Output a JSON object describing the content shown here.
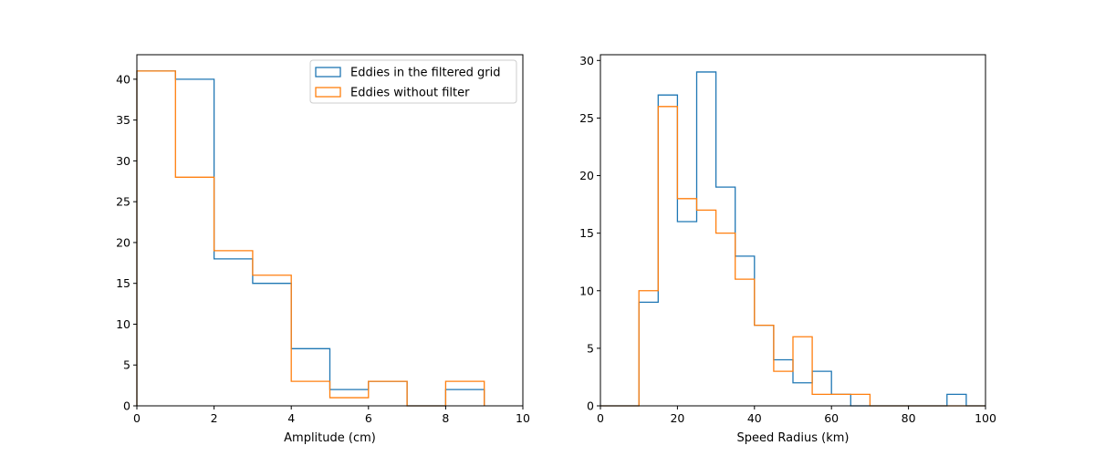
{
  "chart_data": [
    {
      "type": "histogram-step",
      "xlabel": "Amplitude (cm)",
      "ylabel": "",
      "xlim": [
        0,
        10
      ],
      "ylim": [
        0,
        43
      ],
      "xticks": [
        0,
        2,
        4,
        6,
        8,
        10
      ],
      "yticks": [
        0,
        5,
        10,
        15,
        20,
        25,
        30,
        35,
        40
      ],
      "bin_edges": [
        0,
        1,
        2,
        3,
        4,
        5,
        6,
        7,
        8,
        9
      ],
      "legend": {
        "position": "top-right"
      },
      "series": [
        {
          "name": "Eddies in the filtered grid",
          "color": "#1f77b4",
          "values": [
            41,
            40,
            18,
            15,
            7,
            2,
            3,
            0,
            2
          ]
        },
        {
          "name": "Eddies without filter",
          "color": "#ff7f0e",
          "values": [
            41,
            28,
            19,
            16,
            3,
            1,
            3,
            0,
            3
          ]
        }
      ]
    },
    {
      "type": "histogram-step",
      "xlabel": "Speed Radius (km)",
      "ylabel": "",
      "xlim": [
        0,
        100
      ],
      "ylim": [
        0,
        30.5
      ],
      "xticks": [
        0,
        20,
        40,
        60,
        80,
        100
      ],
      "yticks": [
        0,
        5,
        10,
        15,
        20,
        25,
        30
      ],
      "bin_edges": [
        0,
        5,
        10,
        15,
        20,
        25,
        30,
        35,
        40,
        45,
        50,
        55,
        60,
        65,
        70,
        75,
        80,
        85,
        90,
        95,
        100
      ],
      "series": [
        {
          "name": "Eddies in the filtered grid",
          "color": "#1f77b4",
          "values": [
            0,
            0,
            9,
            27,
            16,
            29,
            19,
            13,
            7,
            4,
            2,
            3,
            1,
            0,
            0,
            0,
            0,
            0,
            1,
            0
          ]
        },
        {
          "name": "Eddies without filter",
          "color": "#ff7f0e",
          "values": [
            0,
            0,
            10,
            26,
            18,
            17,
            15,
            11,
            7,
            3,
            6,
            1,
            1,
            1,
            0,
            0,
            0,
            0,
            0,
            0
          ]
        }
      ]
    }
  ]
}
